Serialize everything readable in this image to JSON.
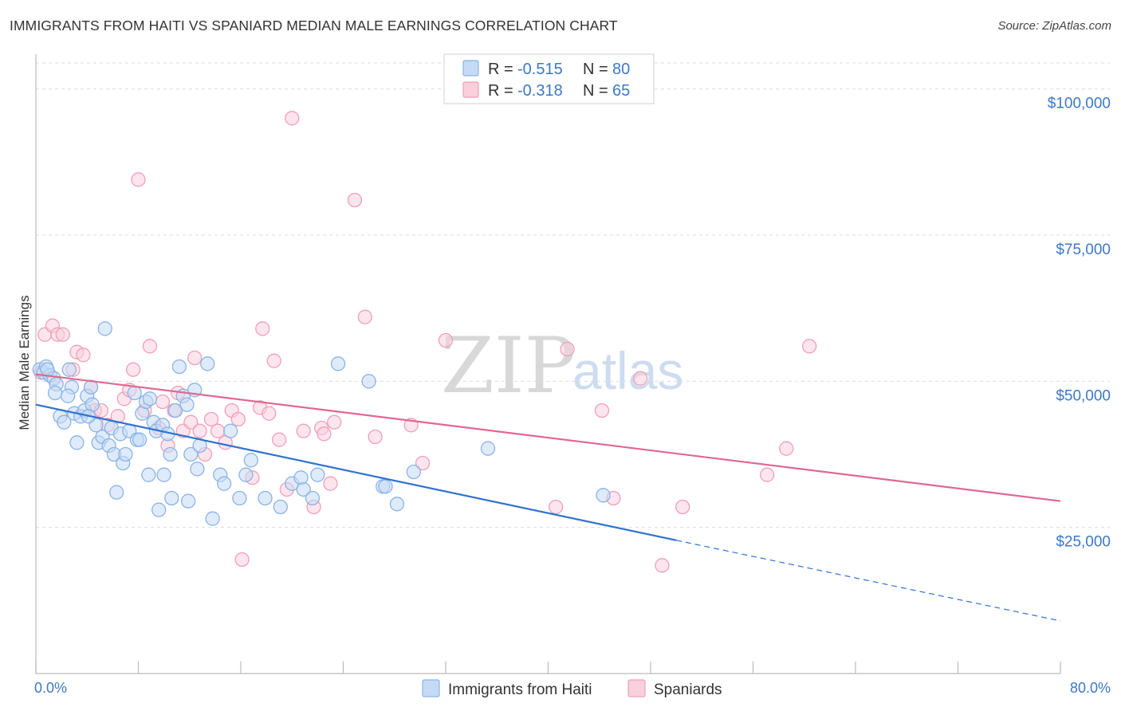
{
  "title": "IMMIGRANTS FROM HAITI VS SPANIARD MEDIAN MALE EARNINGS CORRELATION CHART",
  "source": "Source: ZipAtlas.com",
  "watermark": {
    "zip": "ZIP",
    "atlas": "atlas"
  },
  "legend": {
    "r_label": "R =",
    "n_label": "N =",
    "rows": [
      {
        "name": "Immigrants from Haiti",
        "r": "-0.515",
        "n": "80",
        "color": "#8ab4e8",
        "fill": "#c5daf5"
      },
      {
        "name": "Spaniards",
        "r": "-0.318",
        "n": "65",
        "color": "#f0a0b8",
        "fill": "#f9d0dc"
      }
    ]
  },
  "chart_data": {
    "type": "scatter",
    "title": "IMMIGRANTS FROM HAITI VS SPANIARD MEDIAN MALE EARNINGS CORRELATION CHART",
    "xlabel": "",
    "ylabel": "Median Male Earnings",
    "xlim": [
      0,
      80
    ],
    "ylim": [
      0,
      105000
    ],
    "x_tick_labels": [
      "0.0%",
      "80.0%"
    ],
    "y_ticks": [
      25000,
      50000,
      75000,
      100000
    ],
    "y_tick_labels": [
      "$25,000",
      "$50,000",
      "$75,000",
      "$100,000"
    ],
    "colors": {
      "haiti_point": "#8ab4e8",
      "haiti_fill": "#c5daf5",
      "haiti_line": "#2f72d0",
      "spain_point": "#f0a0b8",
      "spain_fill": "#f9d0dc",
      "spain_line": "#e0688f",
      "grid": "#dddddd",
      "axis_label": "#3c78c8"
    },
    "series": [
      {
        "name": "Immigrants from Haiti",
        "points": [
          [
            0.3,
            52000
          ],
          [
            0.6,
            51500
          ],
          [
            0.8,
            52500
          ],
          [
            1.1,
            51000
          ],
          [
            1.4,
            50500
          ],
          [
            1.6,
            49500
          ],
          [
            1.5,
            48000
          ],
          [
            1.9,
            44000
          ],
          [
            2.2,
            43000
          ],
          [
            2.6,
            52000
          ],
          [
            2.8,
            49000
          ],
          [
            3.0,
            44500
          ],
          [
            3.2,
            39500
          ],
          [
            3.5,
            44000
          ],
          [
            3.8,
            45000
          ],
          [
            4.0,
            47500
          ],
          [
            4.3,
            49000
          ],
          [
            4.4,
            46000
          ],
          [
            4.7,
            42500
          ],
          [
            4.9,
            39500
          ],
          [
            5.2,
            40500
          ],
          [
            5.4,
            59000
          ],
          [
            5.7,
            39000
          ],
          [
            5.9,
            42000
          ],
          [
            6.1,
            37500
          ],
          [
            6.3,
            31000
          ],
          [
            6.6,
            41000
          ],
          [
            6.8,
            36000
          ],
          [
            7.0,
            37500
          ],
          [
            7.3,
            41500
          ],
          [
            7.7,
            48000
          ],
          [
            7.9,
            40000
          ],
          [
            8.1,
            40000
          ],
          [
            8.3,
            44500
          ],
          [
            8.6,
            46500
          ],
          [
            8.8,
            34000
          ],
          [
            8.9,
            47000
          ],
          [
            9.2,
            43000
          ],
          [
            9.4,
            41500
          ],
          [
            9.6,
            28000
          ],
          [
            9.9,
            42500
          ],
          [
            10.0,
            34000
          ],
          [
            10.3,
            41000
          ],
          [
            10.6,
            30000
          ],
          [
            10.5,
            37500
          ],
          [
            10.9,
            45000
          ],
          [
            11.2,
            52500
          ],
          [
            11.5,
            47500
          ],
          [
            11.9,
            29500
          ],
          [
            11.8,
            46000
          ],
          [
            12.1,
            37500
          ],
          [
            12.4,
            48500
          ],
          [
            12.6,
            35000
          ],
          [
            12.8,
            39000
          ],
          [
            13.4,
            53000
          ],
          [
            13.8,
            26500
          ],
          [
            14.4,
            34000
          ],
          [
            14.7,
            32500
          ],
          [
            15.2,
            41500
          ],
          [
            15.9,
            30000
          ],
          [
            16.4,
            34000
          ],
          [
            16.8,
            36500
          ],
          [
            17.9,
            30000
          ],
          [
            19.1,
            28500
          ],
          [
            20.0,
            32500
          ],
          [
            20.7,
            33500
          ],
          [
            20.9,
            31500
          ],
          [
            21.6,
            30000
          ],
          [
            22.0,
            34000
          ],
          [
            23.6,
            53000
          ],
          [
            26.0,
            50000
          ],
          [
            27.1,
            32000
          ],
          [
            27.3,
            32000
          ],
          [
            28.2,
            29000
          ],
          [
            29.5,
            34500
          ],
          [
            35.3,
            38500
          ],
          [
            44.3,
            30500
          ],
          [
            0.9,
            52000
          ],
          [
            2.5,
            47500
          ],
          [
            4.1,
            44000
          ]
        ]
      },
      {
        "name": "Spaniards",
        "points": [
          [
            0.4,
            51500
          ],
          [
            0.7,
            58000
          ],
          [
            1.3,
            59500
          ],
          [
            1.7,
            58000
          ],
          [
            2.1,
            58000
          ],
          [
            2.9,
            52000
          ],
          [
            3.2,
            55000
          ],
          [
            3.7,
            54500
          ],
          [
            4.3,
            49000
          ],
          [
            4.6,
            45000
          ],
          [
            5.1,
            45000
          ],
          [
            5.6,
            42500
          ],
          [
            6.4,
            44000
          ],
          [
            6.9,
            47000
          ],
          [
            7.3,
            48500
          ],
          [
            7.6,
            52000
          ],
          [
            8.0,
            84500
          ],
          [
            8.5,
            45000
          ],
          [
            8.9,
            56000
          ],
          [
            9.6,
            42000
          ],
          [
            9.9,
            46500
          ],
          [
            10.3,
            39000
          ],
          [
            10.8,
            45000
          ],
          [
            11.1,
            48000
          ],
          [
            11.5,
            41500
          ],
          [
            12.1,
            43000
          ],
          [
            12.4,
            54000
          ],
          [
            12.8,
            41500
          ],
          [
            13.2,
            37500
          ],
          [
            13.7,
            43500
          ],
          [
            14.2,
            41500
          ],
          [
            14.8,
            39500
          ],
          [
            15.3,
            45000
          ],
          [
            15.8,
            43500
          ],
          [
            16.1,
            19500
          ],
          [
            16.9,
            33500
          ],
          [
            17.5,
            45500
          ],
          [
            17.7,
            59000
          ],
          [
            18.2,
            44500
          ],
          [
            18.6,
            53500
          ],
          [
            19.0,
            40000
          ],
          [
            19.6,
            31500
          ],
          [
            20.0,
            95000
          ],
          [
            20.9,
            41500
          ],
          [
            21.7,
            28500
          ],
          [
            22.3,
            42000
          ],
          [
            22.5,
            41000
          ],
          [
            23.0,
            32500
          ],
          [
            23.3,
            43000
          ],
          [
            24.9,
            81000
          ],
          [
            25.7,
            61000
          ],
          [
            26.5,
            40500
          ],
          [
            29.3,
            42500
          ],
          [
            30.2,
            36000
          ],
          [
            32.0,
            57000
          ],
          [
            40.6,
            28500
          ],
          [
            41.5,
            55500
          ],
          [
            44.2,
            45000
          ],
          [
            45.1,
            30000
          ],
          [
            47.2,
            50500
          ],
          [
            48.9,
            18500
          ],
          [
            50.5,
            28500
          ],
          [
            57.1,
            34000
          ],
          [
            58.6,
            38500
          ],
          [
            60.4,
            56000
          ]
        ]
      }
    ],
    "trendlines": [
      {
        "series": "Immigrants from Haiti",
        "x": [
          0,
          50
        ],
        "y": [
          46000,
          22800
        ],
        "dashed_extension": {
          "x": [
            50,
            80
          ],
          "y": [
            22800,
            9000
          ]
        }
      },
      {
        "series": "Spaniards",
        "x": [
          0,
          80
        ],
        "y": [
          51200,
          29500
        ]
      }
    ]
  }
}
